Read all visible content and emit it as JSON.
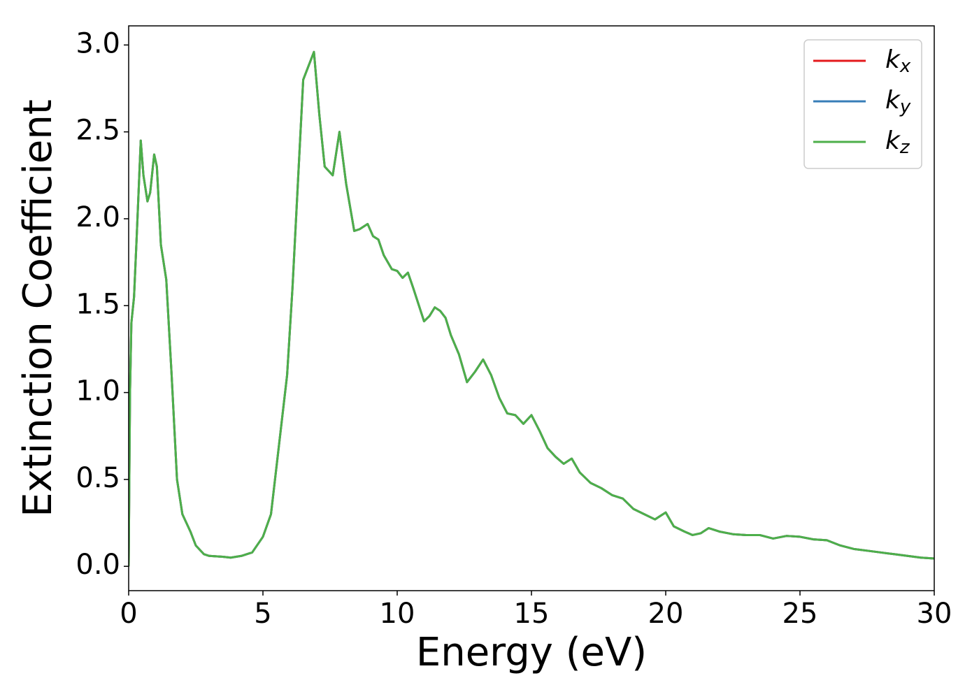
{
  "chart_data": {
    "type": "line",
    "xlabel": "Energy (eV)",
    "ylabel": "Extinction Coefficient",
    "x": [
      0,
      0.05,
      0.1,
      0.2,
      0.3,
      0.45,
      0.55,
      0.7,
      0.8,
      0.95,
      1.05,
      1.2,
      1.4,
      1.6,
      1.8,
      2.0,
      2.3,
      2.5,
      2.8,
      3.0,
      3.5,
      3.8,
      4.2,
      4.6,
      5.0,
      5.3,
      5.6,
      5.9,
      6.1,
      6.3,
      6.5,
      6.7,
      6.9,
      7.1,
      7.3,
      7.6,
      7.85,
      8.1,
      8.4,
      8.6,
      8.9,
      9.1,
      9.3,
      9.5,
      9.8,
      10.0,
      10.2,
      10.4,
      10.6,
      11.0,
      11.2,
      11.4,
      11.6,
      11.8,
      12.0,
      12.3,
      12.6,
      12.9,
      13.2,
      13.5,
      13.8,
      14.1,
      14.4,
      14.7,
      15.0,
      15.3,
      15.6,
      15.9,
      16.2,
      16.5,
      16.8,
      17.2,
      17.6,
      18.0,
      18.4,
      18.8,
      19.2,
      19.6,
      20.0,
      20.3,
      20.7,
      21.0,
      21.3,
      21.6,
      22.0,
      22.5,
      23.0,
      23.5,
      24.0,
      24.5,
      25.0,
      25.5,
      26.0,
      26.5,
      27.0,
      27.5,
      28.0,
      28.5,
      29.0,
      29.5,
      30.0
    ],
    "series": [
      {
        "name": "k_x",
        "color": "#e41a1c",
        "values": [
          0,
          1.0,
          1.4,
          1.55,
          1.9,
          2.45,
          2.25,
          2.1,
          2.15,
          2.37,
          2.3,
          1.85,
          1.65,
          1.1,
          0.5,
          0.3,
          0.2,
          0.12,
          0.07,
          0.06,
          0.055,
          0.05,
          0.06,
          0.08,
          0.17,
          0.3,
          0.7,
          1.1,
          1.6,
          2.2,
          2.8,
          2.88,
          2.96,
          2.6,
          2.3,
          2.25,
          2.5,
          2.2,
          1.93,
          1.94,
          1.97,
          1.9,
          1.88,
          1.79,
          1.71,
          1.7,
          1.66,
          1.69,
          1.6,
          1.41,
          1.44,
          1.49,
          1.47,
          1.43,
          1.33,
          1.22,
          1.06,
          1.12,
          1.19,
          1.1,
          0.97,
          0.88,
          0.87,
          0.82,
          0.87,
          0.78,
          0.68,
          0.63,
          0.59,
          0.62,
          0.54,
          0.48,
          0.45,
          0.41,
          0.39,
          0.33,
          0.3,
          0.27,
          0.31,
          0.23,
          0.2,
          0.18,
          0.19,
          0.22,
          0.2,
          0.185,
          0.18,
          0.18,
          0.16,
          0.175,
          0.17,
          0.155,
          0.15,
          0.12,
          0.1,
          0.09,
          0.08,
          0.07,
          0.06,
          0.05,
          0.045
        ]
      },
      {
        "name": "k_y",
        "color": "#377eb8",
        "values": [
          0,
          1.0,
          1.4,
          1.55,
          1.9,
          2.45,
          2.25,
          2.1,
          2.15,
          2.37,
          2.3,
          1.85,
          1.65,
          1.1,
          0.5,
          0.3,
          0.2,
          0.12,
          0.07,
          0.06,
          0.055,
          0.05,
          0.06,
          0.08,
          0.17,
          0.3,
          0.7,
          1.1,
          1.6,
          2.2,
          2.8,
          2.88,
          2.96,
          2.6,
          2.3,
          2.25,
          2.5,
          2.2,
          1.93,
          1.94,
          1.97,
          1.9,
          1.88,
          1.79,
          1.71,
          1.7,
          1.66,
          1.69,
          1.6,
          1.41,
          1.44,
          1.49,
          1.47,
          1.43,
          1.33,
          1.22,
          1.06,
          1.12,
          1.19,
          1.1,
          0.97,
          0.88,
          0.87,
          0.82,
          0.87,
          0.78,
          0.68,
          0.63,
          0.59,
          0.62,
          0.54,
          0.48,
          0.45,
          0.41,
          0.39,
          0.33,
          0.3,
          0.27,
          0.31,
          0.23,
          0.2,
          0.18,
          0.19,
          0.22,
          0.2,
          0.185,
          0.18,
          0.18,
          0.16,
          0.175,
          0.17,
          0.155,
          0.15,
          0.12,
          0.1,
          0.09,
          0.08,
          0.07,
          0.06,
          0.05,
          0.045
        ]
      },
      {
        "name": "k_z",
        "color": "#4daf4a",
        "values": [
          0,
          1.0,
          1.4,
          1.55,
          1.9,
          2.45,
          2.25,
          2.1,
          2.15,
          2.37,
          2.3,
          1.85,
          1.65,
          1.1,
          0.5,
          0.3,
          0.2,
          0.12,
          0.07,
          0.06,
          0.055,
          0.05,
          0.06,
          0.08,
          0.17,
          0.3,
          0.7,
          1.1,
          1.6,
          2.2,
          2.8,
          2.88,
          2.96,
          2.6,
          2.3,
          2.25,
          2.5,
          2.2,
          1.93,
          1.94,
          1.97,
          1.9,
          1.88,
          1.79,
          1.71,
          1.7,
          1.66,
          1.69,
          1.6,
          1.41,
          1.44,
          1.49,
          1.47,
          1.43,
          1.33,
          1.22,
          1.06,
          1.12,
          1.19,
          1.1,
          0.97,
          0.88,
          0.87,
          0.82,
          0.87,
          0.78,
          0.68,
          0.63,
          0.59,
          0.62,
          0.54,
          0.48,
          0.45,
          0.41,
          0.39,
          0.33,
          0.3,
          0.27,
          0.31,
          0.23,
          0.2,
          0.18,
          0.19,
          0.22,
          0.2,
          0.185,
          0.18,
          0.18,
          0.16,
          0.175,
          0.17,
          0.155,
          0.15,
          0.12,
          0.1,
          0.09,
          0.08,
          0.07,
          0.06,
          0.05,
          0.045
        ]
      }
    ],
    "xlim": [
      0,
      30
    ],
    "xticks": [
      0,
      5,
      10,
      15,
      20,
      25,
      30
    ],
    "ylim": [
      -0.14,
      3.11
    ],
    "yticks": [
      {
        "value": 0,
        "label": "0.0"
      },
      0.5,
      {
        "value": 1,
        "label": "1.0"
      },
      1.5,
      {
        "value": 2,
        "label": "2.0"
      },
      2.5,
      {
        "value": 3,
        "label": "3.0"
      }
    ],
    "grid": false,
    "legend": "upper right"
  }
}
